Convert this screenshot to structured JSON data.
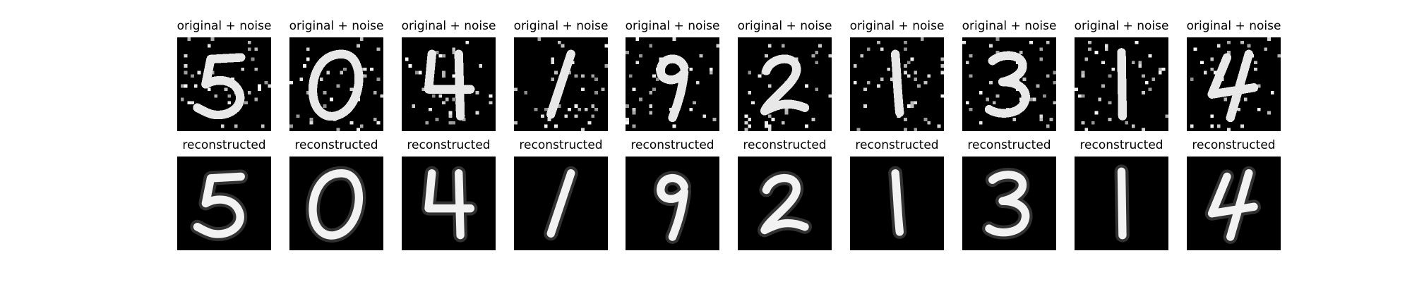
{
  "figure": {
    "background": "#ffffff",
    "panel_background": "#000000",
    "rows": [
      {
        "label": "original + noise",
        "style": "noisy",
        "digits": [
          "5",
          "0",
          "4",
          "1",
          "9",
          "2",
          "1",
          "3",
          "1",
          "4"
        ]
      },
      {
        "label": "reconstructed",
        "style": "clean",
        "digits": [
          "5",
          "0",
          "4",
          "1",
          "9",
          "2",
          "1",
          "3",
          "1",
          "4"
        ]
      }
    ]
  }
}
